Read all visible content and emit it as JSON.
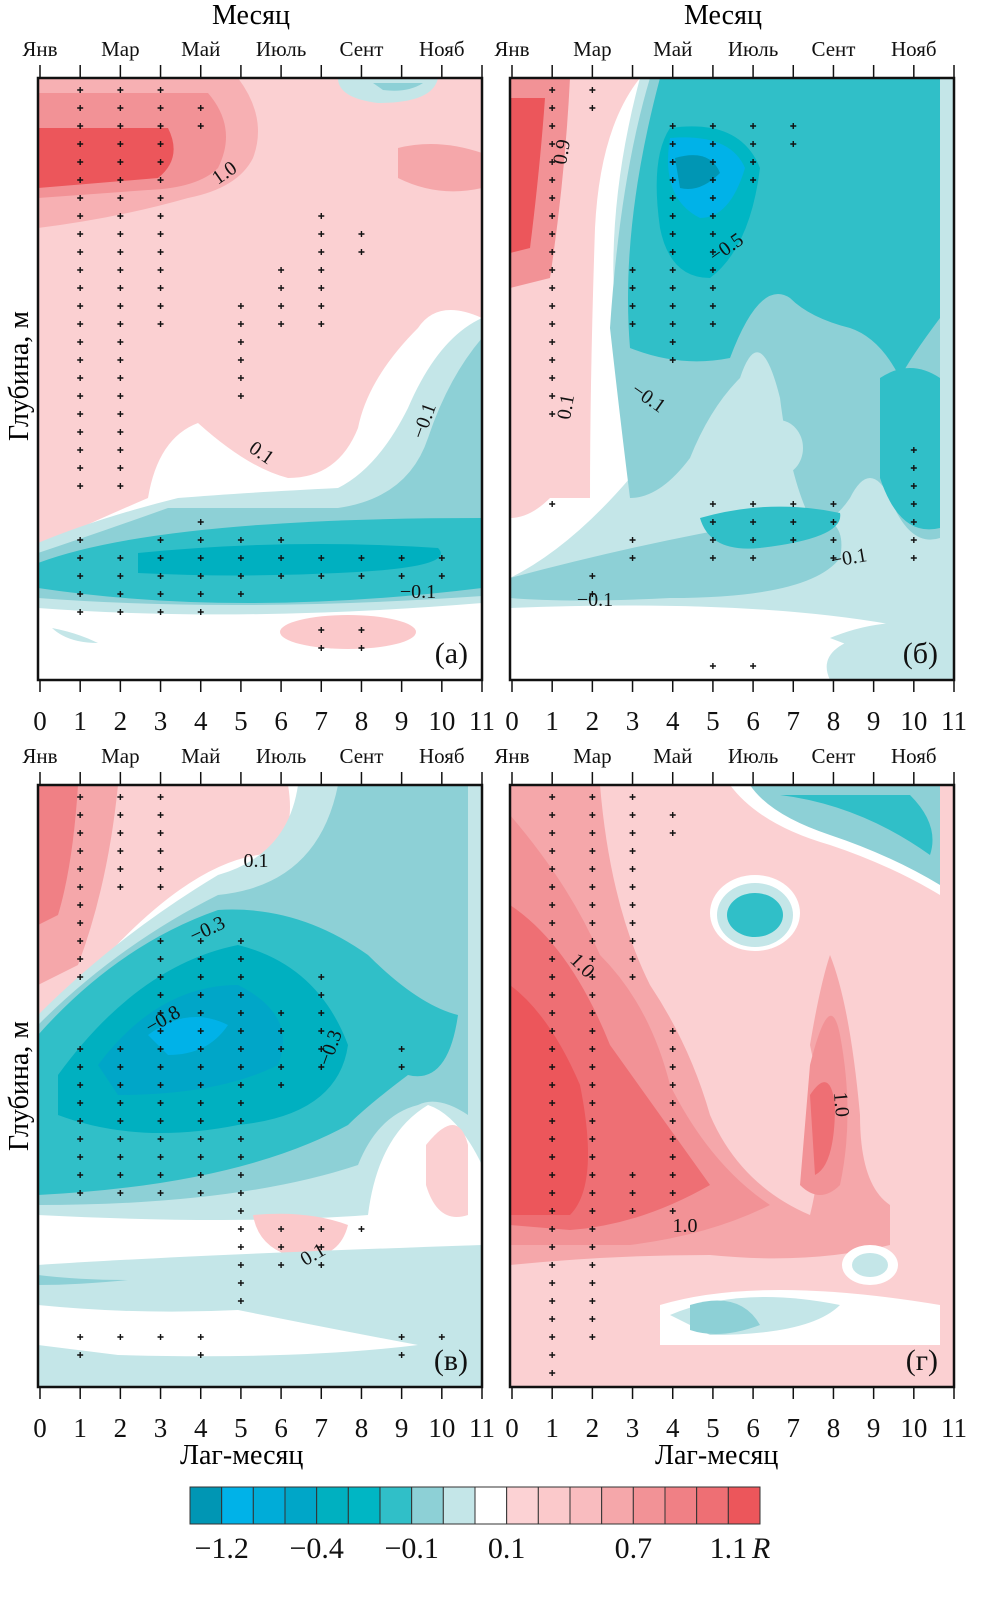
{
  "chart_data": {
    "type": "heatmap",
    "top_axis_title": "Месяц",
    "month_labels": [
      "Янв",
      "Мар",
      "Май",
      "Июль",
      "Сент",
      "Нояб"
    ],
    "x_ticks": [
      "0",
      "1",
      "2",
      "3",
      "4",
      "5",
      "6",
      "7",
      "8",
      "9",
      "10",
      "11"
    ],
    "xlabel": "Лаг-месяц",
    "ylabel": "Глубина, м",
    "xlim": [
      0,
      11
    ],
    "colorbar": {
      "label": "R",
      "tick_labels": [
        "−1.2",
        "−0.4",
        "−0.1",
        "0.1",
        "0.7",
        "1.1"
      ],
      "colors": [
        "#0096b4",
        "#00b2e8",
        "#00acd8",
        "#00a6c8",
        "#00b0c0",
        "#00b6c4",
        "#30bfc8",
        "#8dd0d6",
        "#c4e6e8",
        "#ffffff",
        "#fcd2d4",
        "#fbc9cb",
        "#f9bcbf",
        "#f5a7aa",
        "#f29296",
        "#f08085",
        "#ee6f74",
        "#ec565b"
      ]
    },
    "panels": [
      {
        "label": "(а)",
        "contour_labels": [
          "1.0",
          "0.1",
          "−0.1",
          "−0.1"
        ],
        "significance": [
          [
            1,
            0,
            22
          ],
          [
            2,
            0,
            22
          ],
          [
            3,
            0,
            13
          ],
          [
            4,
            1,
            2
          ],
          [
            5,
            12,
            17
          ],
          [
            6,
            10,
            13
          ],
          [
            7,
            7,
            13
          ],
          [
            8,
            8,
            9
          ],
          [
            1,
            25,
            29
          ],
          [
            2,
            26,
            29
          ],
          [
            3,
            25,
            29
          ],
          [
            4,
            24,
            29
          ],
          [
            5,
            25,
            28
          ],
          [
            6,
            25,
            27
          ],
          [
            7,
            26,
            27
          ],
          [
            8,
            26,
            27
          ],
          [
            9,
            26,
            27
          ],
          [
            10,
            26,
            27
          ],
          [
            7,
            30,
            31
          ],
          [
            8,
            30,
            31
          ]
        ]
      },
      {
        "label": "(б)",
        "contour_labels": [
          "0.9",
          "−0.5",
          "0.1",
          "−0.1",
          "−0.1",
          "−0.1"
        ],
        "significance": [
          [
            1,
            0,
            18
          ],
          [
            2,
            0,
            1
          ],
          [
            3,
            10,
            13
          ],
          [
            4,
            2,
            15
          ],
          [
            5,
            2,
            13
          ],
          [
            6,
            2,
            5
          ],
          [
            7,
            2,
            3
          ],
          [
            1,
            23,
            23
          ],
          [
            5,
            23,
            26
          ],
          [
            6,
            23,
            26
          ],
          [
            7,
            23,
            25
          ],
          [
            8,
            23,
            26
          ],
          [
            10,
            20,
            26
          ],
          [
            3,
            25,
            26
          ],
          [
            2,
            27,
            28
          ],
          [
            5,
            32,
            32
          ],
          [
            6,
            32,
            32
          ]
        ]
      },
      {
        "label": "(в)",
        "contour_labels": [
          "0.1",
          "−0.3",
          "−0.8",
          "−0.3",
          "0.1"
        ],
        "significance": [
          [
            1,
            0,
            10
          ],
          [
            2,
            0,
            5
          ],
          [
            3,
            0,
            5
          ],
          [
            3,
            8,
            22
          ],
          [
            4,
            8,
            22
          ],
          [
            1,
            14,
            22
          ],
          [
            2,
            14,
            22
          ],
          [
            5,
            8,
            25
          ],
          [
            6,
            12,
            16
          ],
          [
            7,
            10,
            15
          ],
          [
            9,
            14,
            15
          ],
          [
            6,
            24,
            26
          ],
          [
            7,
            24,
            26
          ],
          [
            8,
            24,
            24
          ],
          [
            5,
            26,
            28
          ],
          [
            1,
            30,
            31
          ],
          [
            2,
            30,
            30
          ],
          [
            3,
            30,
            30
          ],
          [
            4,
            30,
            31
          ],
          [
            9,
            30,
            31
          ],
          [
            10,
            30,
            30
          ]
        ]
      },
      {
        "label": "(г)",
        "contour_labels": [
          "1.0",
          "1.0",
          "1.0"
        ],
        "significance": [
          [
            1,
            0,
            32
          ],
          [
            2,
            0,
            30
          ],
          [
            3,
            0,
            10
          ],
          [
            4,
            1,
            2
          ],
          [
            3,
            21,
            23
          ],
          [
            4,
            13,
            23
          ]
        ]
      }
    ]
  }
}
